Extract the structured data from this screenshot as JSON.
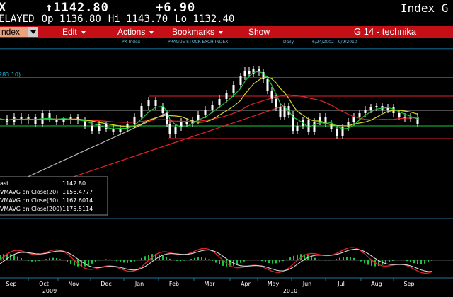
{
  "quote": {
    "symbol": "X",
    "last": "↑1142.80",
    "change": "+6.90",
    "index_label": "Index G",
    "status": "ELAYED",
    "open": "Op 1136.80",
    "high": "Hi 1143.70",
    "low": "Lo 1132.40"
  },
  "menu": {
    "security": "ndex",
    "items": [
      {
        "label": "Edit"
      },
      {
        "label": "Actions"
      },
      {
        "label": "Bookmarks"
      },
      {
        "label": "Show"
      }
    ],
    "screen_title": "G 14 - technika"
  },
  "chart_header": {
    "ticker": "PX Index",
    "sep": "-",
    "name": "PRAGUE STOCK EXCH INDEX",
    "period": "Daily",
    "range": "6/24/2002 - 9/9/2010"
  },
  "price_panel": {
    "level_label": "283.10)",
    "legend": [
      {
        "label": "ast",
        "value": "1142.80",
        "color": "#ffffff"
      },
      {
        "label": "VMAVG on Close(20)",
        "value": "1156.4777",
        "color": "#19c93a"
      },
      {
        "label": "VMAVG on Close(50)",
        "value": "1167.6014",
        "color": "#d6d627"
      },
      {
        "label": "VMAVG on Close(200)",
        "value": "1175.5114",
        "color": "#e0242a"
      }
    ]
  },
  "x_axis": {
    "months": [
      "Sep",
      "Oct",
      "Nov",
      "Dec",
      "Jan",
      "Feb",
      "Mar",
      "Apr",
      "May",
      "Jun",
      "Jul",
      "Aug",
      "Sep"
    ],
    "years": [
      "2009",
      "2010"
    ]
  },
  "colors": {
    "menu_bar": "#c40f16",
    "price": "#ffffff",
    "ma20": "#19c93a",
    "ma50": "#d6d627",
    "ma200": "#e0242a",
    "level_line": "#20b8d8",
    "axis_text": "#ffffff"
  }
}
